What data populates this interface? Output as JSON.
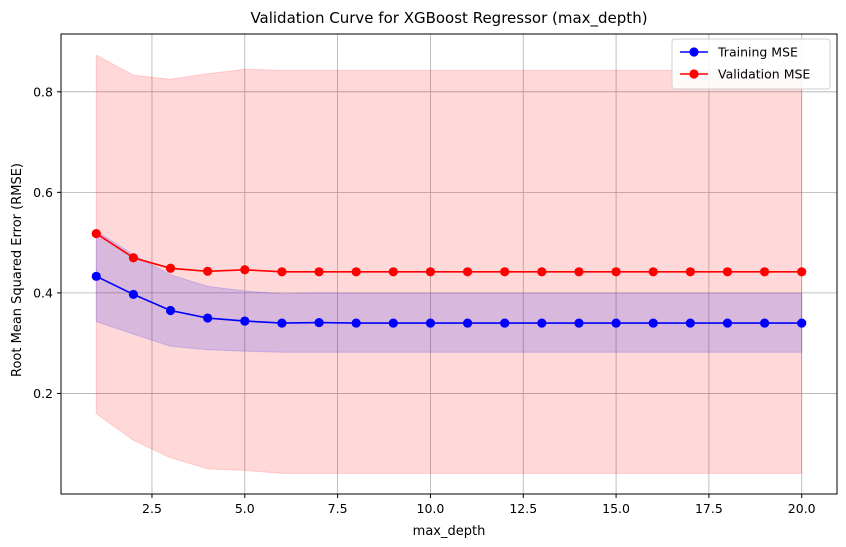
{
  "chart_data": {
    "type": "line",
    "title": "Validation Curve for XGBoost Regressor (max_depth)",
    "xlabel": "max_depth",
    "ylabel": "Root Mean Squared Error (RMSE)",
    "x": [
      1,
      2,
      3,
      4,
      5,
      6,
      7,
      8,
      9,
      10,
      11,
      12,
      13,
      14,
      15,
      16,
      17,
      18,
      19,
      20
    ],
    "xlim": [
      0.05,
      20.95
    ],
    "ylim": [
      0.0,
      0.915
    ],
    "xticks": [
      2.5,
      5.0,
      7.5,
      10.0,
      12.5,
      15.0,
      17.5,
      20.0
    ],
    "xtick_labels": [
      "2.5",
      "5.0",
      "7.5",
      "10.0",
      "12.5",
      "15.0",
      "17.5",
      "20.0"
    ],
    "yticks": [
      0.2,
      0.4,
      0.6,
      0.8
    ],
    "ytick_labels": [
      "0.2",
      "0.4",
      "0.6",
      "0.8"
    ],
    "grid": true,
    "legend_position": "top-right",
    "series": [
      {
        "name": "Training MSE",
        "color": "#0000ff",
        "band_color": "#0000ff",
        "values": [
          0.433,
          0.397,
          0.365,
          0.35,
          0.344,
          0.34,
          0.341,
          0.34,
          0.34,
          0.34,
          0.34,
          0.34,
          0.34,
          0.34,
          0.34,
          0.34,
          0.34,
          0.34,
          0.34,
          0.34
        ],
        "lower": [
          0.343,
          0.318,
          0.294,
          0.287,
          0.284,
          0.282,
          0.282,
          0.282,
          0.282,
          0.282,
          0.282,
          0.282,
          0.282,
          0.282,
          0.282,
          0.282,
          0.282,
          0.282,
          0.282,
          0.282
        ],
        "upper": [
          0.523,
          0.476,
          0.436,
          0.413,
          0.404,
          0.398,
          0.4,
          0.399,
          0.399,
          0.399,
          0.399,
          0.399,
          0.399,
          0.399,
          0.399,
          0.399,
          0.399,
          0.399,
          0.399,
          0.399
        ]
      },
      {
        "name": "Validation MSE",
        "color": "#ff0000",
        "band_color": "#ff0000",
        "values": [
          0.518,
          0.47,
          0.449,
          0.443,
          0.446,
          0.442,
          0.442,
          0.442,
          0.442,
          0.442,
          0.442,
          0.442,
          0.442,
          0.442,
          0.442,
          0.442,
          0.442,
          0.442,
          0.442,
          0.442
        ],
        "lower": [
          0.16,
          0.107,
          0.072,
          0.05,
          0.047,
          0.041,
          0.041,
          0.041,
          0.041,
          0.041,
          0.041,
          0.041,
          0.041,
          0.041,
          0.041,
          0.041,
          0.041,
          0.041,
          0.041,
          0.041
        ],
        "upper": [
          0.873,
          0.833,
          0.825,
          0.836,
          0.845,
          0.843,
          0.843,
          0.843,
          0.843,
          0.843,
          0.843,
          0.843,
          0.843,
          0.843,
          0.843,
          0.843,
          0.843,
          0.843,
          0.843,
          0.843
        ]
      }
    ]
  }
}
